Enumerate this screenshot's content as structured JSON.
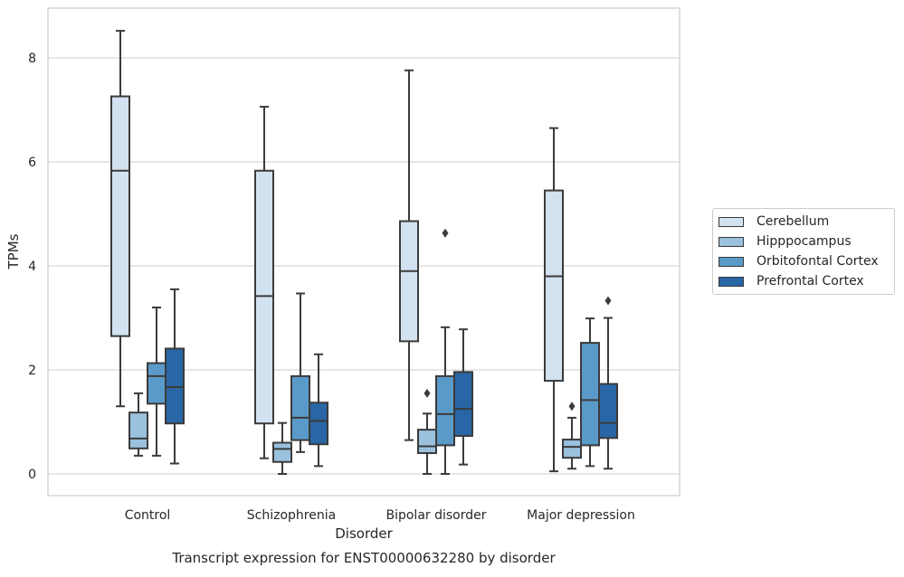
{
  "chart_data": {
    "type": "box",
    "title": "",
    "caption": "Transcript expression for ENST00000632280 by disorder",
    "xlabel": "Disorder",
    "ylabel": "TPMs",
    "categories": [
      "Control",
      "Schizophrenia",
      "Bipolar disorder",
      "Major depression"
    ],
    "yticks": [
      0,
      2,
      4,
      6,
      8
    ],
    "ylim": [
      -0.42,
      8.93
    ],
    "grid": "horizontal",
    "legend_position": "right",
    "series": [
      {
        "name": "Cerebellum",
        "color": "#d3e2f0",
        "boxes": [
          {
            "min": 1.3,
            "q1": 2.65,
            "median": 5.83,
            "q3": 7.26,
            "max": 8.52,
            "outliers": []
          },
          {
            "min": 0.3,
            "q1": 0.97,
            "median": 3.42,
            "q3": 5.83,
            "max": 7.06,
            "outliers": []
          },
          {
            "min": 0.65,
            "q1": 2.55,
            "median": 3.9,
            "q3": 4.86,
            "max": 7.76,
            "outliers": []
          },
          {
            "min": 0.05,
            "q1": 1.79,
            "median": 3.8,
            "q3": 5.45,
            "max": 6.65,
            "outliers": []
          }
        ]
      },
      {
        "name": "Hipppocampus",
        "color": "#9ac1dd",
        "boxes": [
          {
            "min": 0.35,
            "q1": 0.49,
            "median": 0.68,
            "q3": 1.18,
            "max": 1.55,
            "outliers": []
          },
          {
            "min": 0.0,
            "q1": 0.23,
            "median": 0.48,
            "q3": 0.6,
            "max": 0.98,
            "outliers": []
          },
          {
            "min": 0.0,
            "q1": 0.4,
            "median": 0.53,
            "q3": 0.85,
            "max": 1.16,
            "outliers": [
              1.55
            ]
          },
          {
            "min": 0.1,
            "q1": 0.31,
            "median": 0.52,
            "q3": 0.66,
            "max": 1.08,
            "outliers": [
              1.3
            ]
          }
        ]
      },
      {
        "name": "Orbitofontal Cortex",
        "color": "#5a9ac9",
        "boxes": [
          {
            "min": 0.35,
            "q1": 1.35,
            "median": 1.88,
            "q3": 2.13,
            "max": 3.2,
            "outliers": []
          },
          {
            "min": 0.42,
            "q1": 0.65,
            "median": 1.08,
            "q3": 1.88,
            "max": 3.47,
            "outliers": []
          },
          {
            "min": 0.0,
            "q1": 0.55,
            "median": 1.15,
            "q3": 1.88,
            "max": 2.82,
            "outliers": [
              4.63
            ]
          },
          {
            "min": 0.15,
            "q1": 0.55,
            "median": 1.42,
            "q3": 2.52,
            "max": 2.99,
            "outliers": []
          }
        ]
      },
      {
        "name": "Prefrontal Cortex",
        "color": "#2866a5",
        "boxes": [
          {
            "min": 0.2,
            "q1": 0.97,
            "median": 1.67,
            "q3": 2.41,
            "max": 3.55,
            "outliers": []
          },
          {
            "min": 0.15,
            "q1": 0.57,
            "median": 1.02,
            "q3": 1.37,
            "max": 2.3,
            "outliers": []
          },
          {
            "min": 0.18,
            "q1": 0.73,
            "median": 1.25,
            "q3": 1.96,
            "max": 2.78,
            "outliers": []
          },
          {
            "min": 0.1,
            "q1": 0.69,
            "median": 0.98,
            "q3": 1.73,
            "max": 3.0,
            "outliers": [
              3.33
            ]
          }
        ]
      }
    ]
  }
}
